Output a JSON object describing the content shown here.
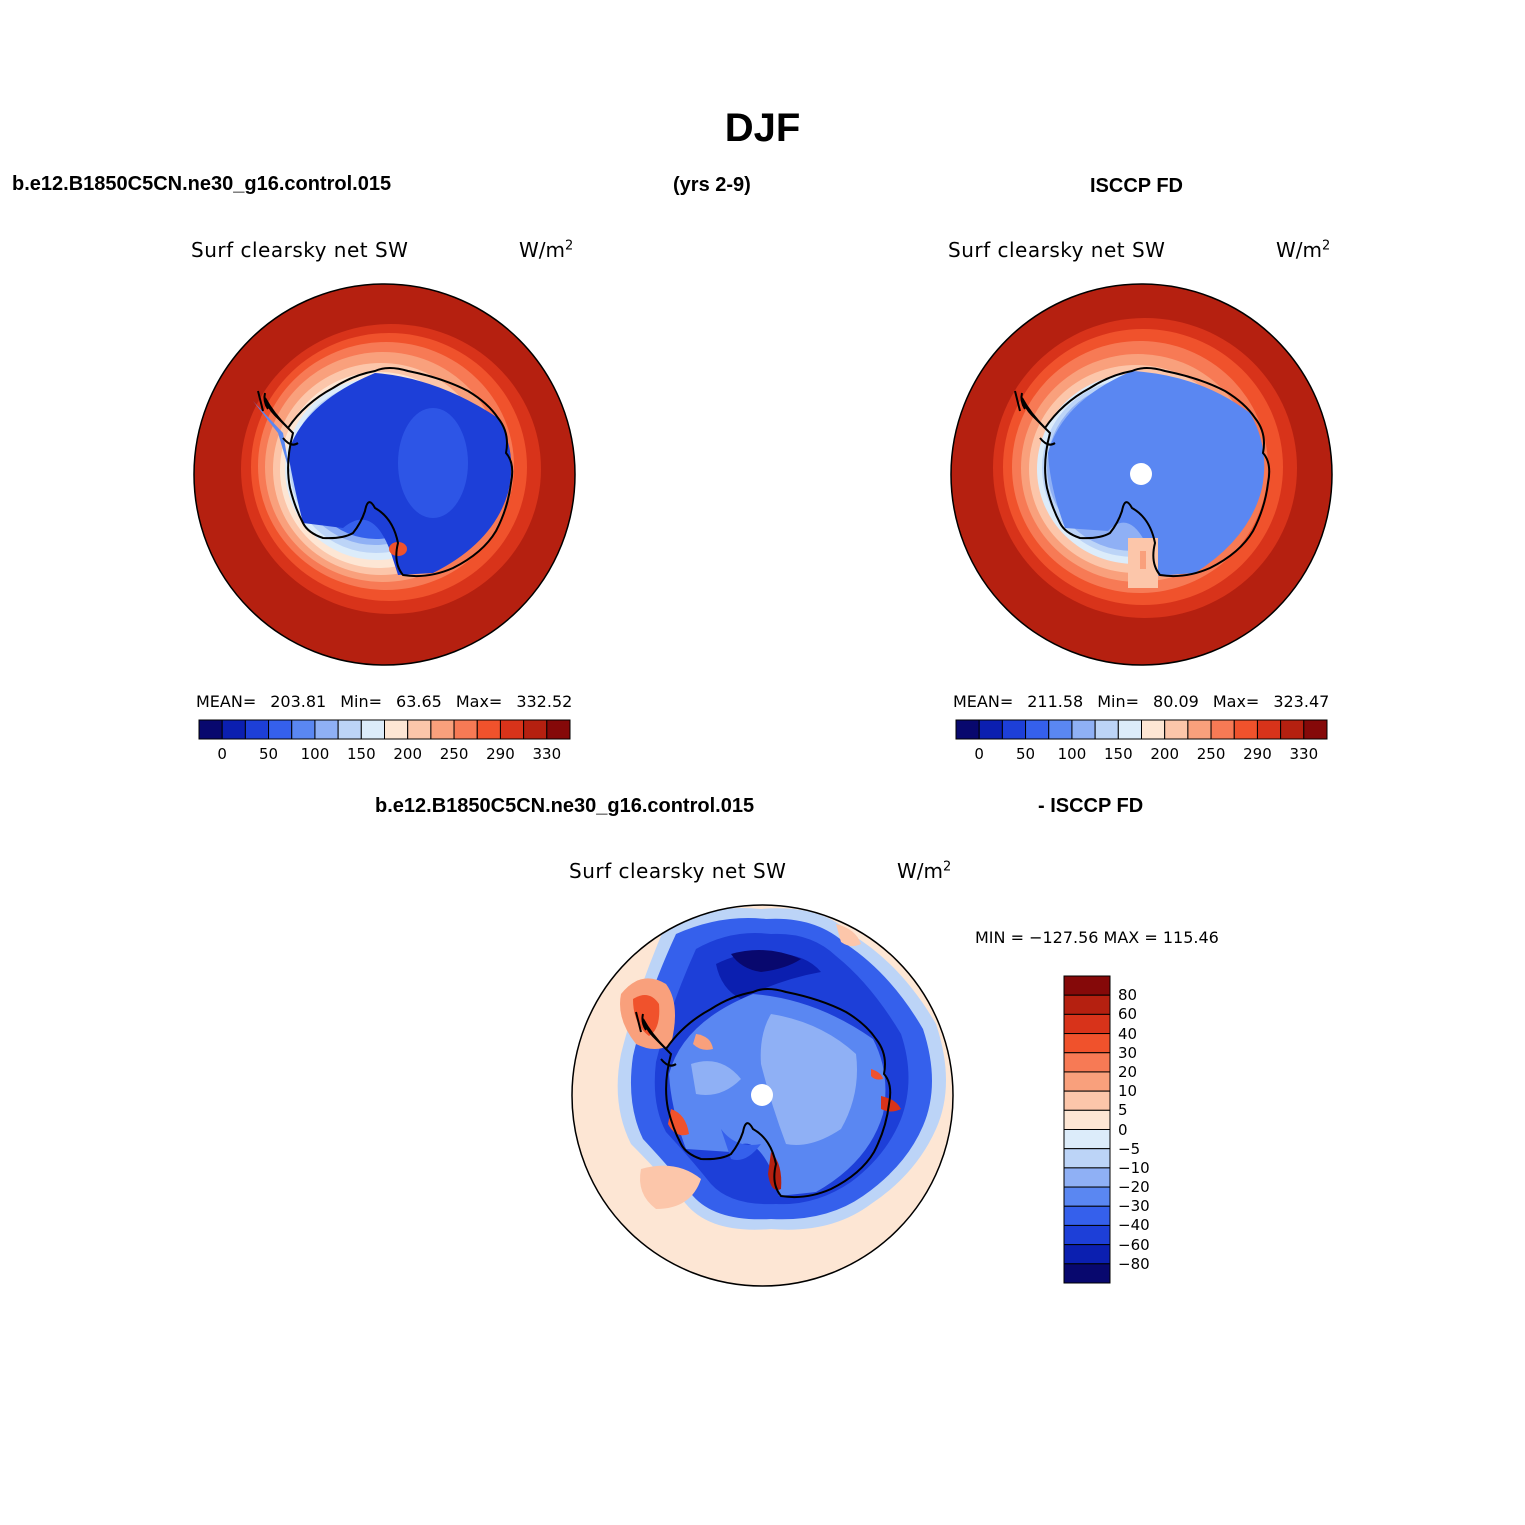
{
  "figure": {
    "title": "DJF",
    "case_name": "b.e12.B1850C5CN.ne30_g16.control.015",
    "years": "(yrs 2-9)",
    "obs_name": "ISCCP FD",
    "diff_case": "b.e12.B1850C5CN.ne30_g16.control.015",
    "diff_obs": "- ISCCP FD"
  },
  "panels": {
    "model": {
      "variable": "Surf  clearsky  net  SW",
      "units_base": "W/m",
      "units_exp": "2",
      "mean_label": "MEAN=",
      "mean": "203.81",
      "min_label": "Min=",
      "min": "63.65",
      "max_label": "Max=",
      "max": "332.52"
    },
    "obs": {
      "variable": "Surf  clearsky  net  SW",
      "units_base": "W/m",
      "units_exp": "2",
      "mean_label": "MEAN=",
      "mean": "211.58",
      "min_label": "Min=",
      "min": "80.09",
      "max_label": "Max=",
      "max": "323.47"
    },
    "diff": {
      "variable": "Surf  clearsky  net  SW",
      "units_base": "W/m",
      "units_exp": "2",
      "minmax_text": "MIN = −127.56 MAX = 115.46"
    }
  },
  "colorbars": {
    "abs_colors": [
      "#08086e",
      "#0b1fb0",
      "#1d3fd8",
      "#3560ec",
      "#5a87f2",
      "#8fb0f5",
      "#bcd4f7",
      "#dcecfa",
      "#fde6d4",
      "#fcc6aa",
      "#f9a07c",
      "#f77a55",
      "#f0522c",
      "#d8331a",
      "#b52010",
      "#850909"
    ],
    "abs_ticks": [
      "0",
      "50",
      "100",
      "150",
      "200",
      "250",
      "290",
      "330"
    ],
    "diff_colors": [
      "#08086e",
      "#0b1fb0",
      "#1d3fd8",
      "#3560ec",
      "#5a87f2",
      "#8fb0f5",
      "#bcd4f7",
      "#dcecfa",
      "#fde6d4",
      "#fcc6aa",
      "#f9a07c",
      "#f77a55",
      "#f0522c",
      "#d8331a",
      "#b52010",
      "#850909"
    ],
    "diff_ticks": [
      "80",
      "60",
      "40",
      "30",
      "20",
      "10",
      "5",
      "0",
      "−5",
      "−10",
      "−20",
      "−30",
      "−40",
      "−60",
      "−80"
    ]
  }
}
